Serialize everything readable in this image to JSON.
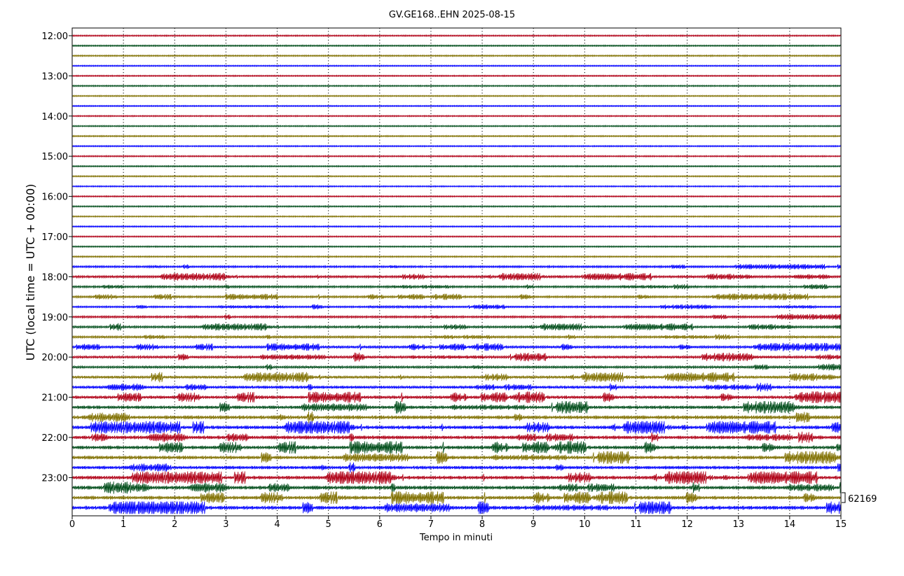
{
  "chart_data": {
    "type": "line",
    "title": "GV.GE168..EHN 2025-08-15",
    "xlabel": "Tempo in minuti",
    "ylabel": "UTC (local time = UTC + 00:00)",
    "xlim": [
      0,
      15
    ],
    "x_ticks": [
      "0",
      "1",
      "2",
      "3",
      "4",
      "5",
      "6",
      "7",
      "8",
      "9",
      "10",
      "11",
      "12",
      "13",
      "14",
      "15"
    ],
    "y_ticks": [
      "12:00",
      "13:00",
      "14:00",
      "15:00",
      "16:00",
      "17:00",
      "18:00",
      "19:00",
      "20:00",
      "21:00",
      "22:00",
      "23:00"
    ],
    "x_grid": "dotted",
    "trace_colors": [
      "#b00016",
      "#004d1a",
      "#807000",
      "#0000ff"
    ],
    "scale_label": "62169",
    "start_hour": "12:00",
    "rows_per_hour": 4,
    "row_count": 48,
    "amplitude_profile": [
      0.06,
      0.06,
      0.07,
      0.05,
      0.05,
      0.06,
      0.05,
      0.05,
      0.05,
      0.05,
      0.06,
      0.05,
      0.06,
      0.06,
      0.05,
      0.05,
      0.05,
      0.06,
      0.05,
      0.06,
      0.05,
      0.06,
      0.08,
      0.22,
      0.3,
      0.25,
      0.25,
      0.18,
      0.25,
      0.28,
      0.28,
      0.32,
      0.35,
      0.3,
      0.4,
      0.45,
      0.5,
      0.55,
      0.65,
      0.6,
      0.6,
      0.6,
      0.6,
      0.55,
      0.6,
      0.65,
      0.6,
      0.65
    ]
  }
}
